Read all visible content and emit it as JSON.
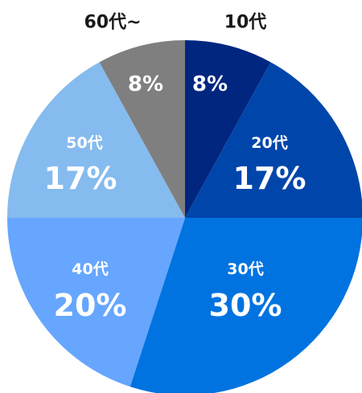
{
  "chart_data": {
    "type": "pie",
    "categories": [
      "10代",
      "20代",
      "30代",
      "40代",
      "50代",
      "60代~"
    ],
    "values": [
      8,
      17,
      30,
      20,
      17,
      8
    ],
    "value_labels": [
      "8%",
      "17%",
      "30%",
      "20%",
      "17%",
      "8%"
    ],
    "colors": [
      "#002680",
      "#0046aa",
      "#0073e0",
      "#66a6ff",
      "#85bbee",
      "#7f7f7f"
    ],
    "start": "top",
    "direction": "clockwise",
    "legend": "none"
  }
}
